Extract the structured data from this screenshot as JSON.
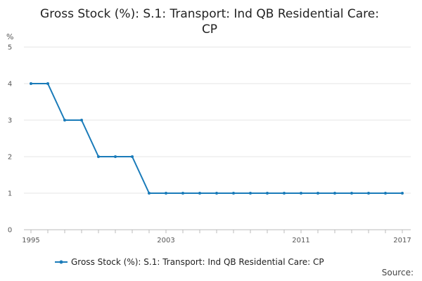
{
  "chart_data": {
    "type": "line",
    "title_lines": [
      "Gross Stock (%): S.1: Transport: Ind QB Residential Care:",
      "CP"
    ],
    "ylabel": "%",
    "ylim": [
      0,
      5
    ],
    "y_ticks": [
      "0",
      "1",
      "2",
      "3",
      "4",
      "5"
    ],
    "xlim": [
      1995,
      2017
    ],
    "x_tick_labels": [
      "1995",
      "2003",
      "2011",
      "2017"
    ],
    "grid": true,
    "legend_position": "bottom",
    "source_label": "Source:",
    "series": [
      {
        "name": "Gross Stock (%): S.1: Transport: Ind QB Residential Care: CP",
        "color": "#1a7bb9",
        "x": [
          1995,
          1996,
          1997,
          1998,
          1999,
          2000,
          2001,
          2002,
          2003,
          2004,
          2005,
          2006,
          2007,
          2008,
          2009,
          2010,
          2011,
          2012,
          2013,
          2014,
          2015,
          2016,
          2017
        ],
        "values": [
          4,
          4,
          3,
          3,
          2,
          2,
          2,
          1,
          1,
          1,
          1,
          1,
          1,
          1,
          1,
          1,
          1,
          1,
          1,
          1,
          1,
          1,
          1
        ]
      }
    ]
  }
}
